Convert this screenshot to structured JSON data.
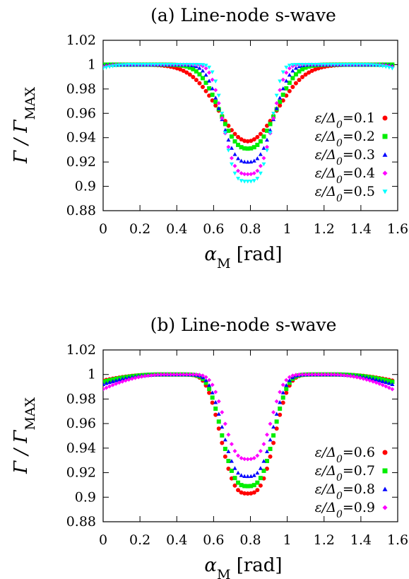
{
  "chart_data": [
    {
      "type": "scatter",
      "title": "(a) Line-node s-wave",
      "ylabel": "Γ / Γ_MAX",
      "xlabel": "α_M [rad]",
      "xlim": [
        0,
        1.6
      ],
      "ylim": [
        0.88,
        1.02
      ],
      "xticks": [
        "0",
        "0.2",
        "0.4",
        "0.6",
        "0.8",
        "1",
        "1.2",
        "1.4",
        "1.6"
      ],
      "yticks": [
        "0.88",
        "0.9",
        "0.92",
        "0.94",
        "0.96",
        "0.98",
        "1",
        "1.02"
      ],
      "grid": false,
      "legend_position": "right",
      "series": [
        {
          "name": "ε/Δ0=0.1",
          "color": "#ff0000",
          "marker": "circle",
          "min": 0.937,
          "shoulder": 1.0,
          "shoulder_x": 0.0,
          "end": 1.0,
          "width": 0.22,
          "flat": 2.0
        },
        {
          "name": "ε/Δ0=0.2",
          "color": "#00ee00",
          "marker": "square",
          "min": 0.931,
          "shoulder": 1.0,
          "shoulder_x": 0.0,
          "end": 1.0,
          "width": 0.19,
          "flat": 2.4
        },
        {
          "name": "ε/Δ0=0.3",
          "color": "#0000ff",
          "marker": "triangle",
          "min": 0.92,
          "shoulder": 1.0,
          "shoulder_x": 0.05,
          "end": 0.999,
          "width": 0.17,
          "flat": 2.8
        },
        {
          "name": "ε/Δ0=0.4",
          "color": "#ff00ff",
          "marker": "diamond",
          "min": 0.91,
          "shoulder": 1.0,
          "shoulder_x": 0.1,
          "end": 0.998,
          "width": 0.155,
          "flat": 3.2
        },
        {
          "name": "ε/Δ0=0.5",
          "color": "#00ffff",
          "marker": "invtriangle",
          "min": 0.904,
          "shoulder": 1.0,
          "shoulder_x": 0.15,
          "end": 0.997,
          "width": 0.145,
          "flat": 3.6
        }
      ]
    },
    {
      "type": "scatter",
      "title": "(b) Line-node s-wave",
      "ylabel": "Γ / Γ_MAX",
      "xlabel": "α_M [rad]",
      "xlim": [
        0,
        1.6
      ],
      "ylim": [
        0.88,
        1.02
      ],
      "xticks": [
        "0",
        "0.2",
        "0.4",
        "0.6",
        "0.8",
        "1",
        "1.2",
        "1.4",
        "1.6"
      ],
      "yticks": [
        "0.88",
        "0.9",
        "0.92",
        "0.94",
        "0.96",
        "0.98",
        "1",
        "1.02"
      ],
      "grid": false,
      "legend_position": "right",
      "series": [
        {
          "name": "ε/Δ0=0.6",
          "color": "#ff0000",
          "marker": "circle",
          "min": 0.903,
          "shoulder": 1.0,
          "shoulder_x": 0.3,
          "end": 0.995,
          "width": 0.17,
          "flat": 3.0
        },
        {
          "name": "ε/Δ0=0.7",
          "color": "#00ee00",
          "marker": "square",
          "min": 0.909,
          "shoulder": 1.0,
          "shoulder_x": 0.31,
          "end": 0.994,
          "width": 0.165,
          "flat": 3.0
        },
        {
          "name": "ε/Δ0=0.8",
          "color": "#0000ff",
          "marker": "triangle",
          "min": 0.917,
          "shoulder": 1.0,
          "shoulder_x": 0.32,
          "end": 0.992,
          "width": 0.16,
          "flat": 3.0
        },
        {
          "name": "ε/Δ0=0.9",
          "color": "#ff00ff",
          "marker": "diamond",
          "min": 0.931,
          "shoulder": 1.0,
          "shoulder_x": 0.34,
          "end": 0.988,
          "width": 0.15,
          "flat": 3.0
        }
      ]
    }
  ]
}
